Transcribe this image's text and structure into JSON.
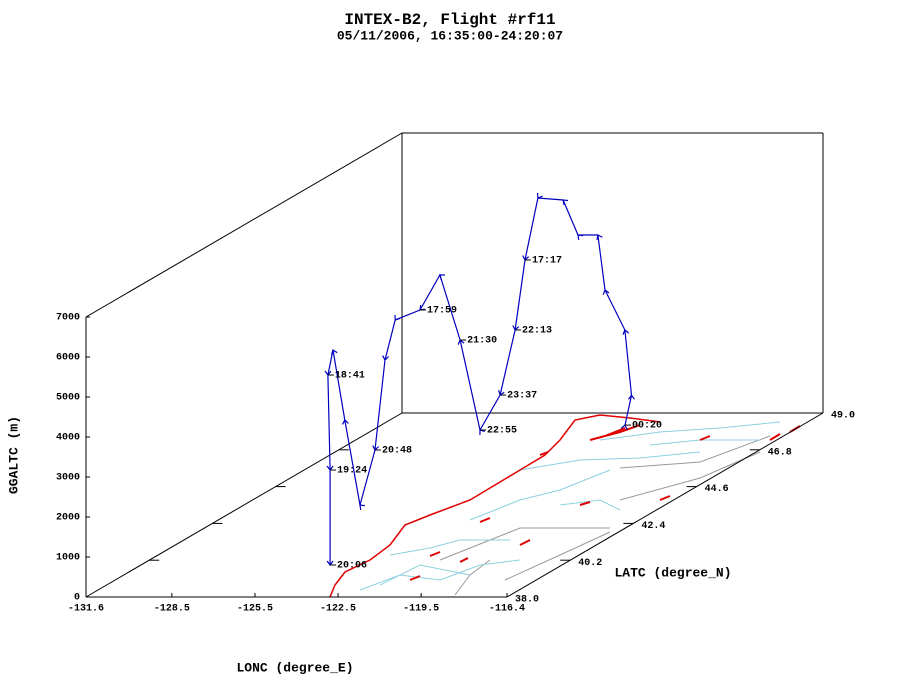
{
  "chart_data": {
    "type": "line3d",
    "title": "INTEX-B2, Flight #rf11",
    "subtitle": "05/11/2006, 16:35:00-24:20:07",
    "xlabel": "LONC (degree_E)",
    "ylabel": "LATC (degree_N)",
    "zlabel": "GGALTC (m)",
    "color": "#0000c0",
    "x": [
      -122.75,
      -122.38,
      -122.41,
      -122.9,
      -122.93,
      -123.42,
      -123.73,
      -124.41,
      -124.65,
      -124.78,
      -125.09,
      -125.59,
      -126.08,
      -126.58,
      -127.07,
      -127.74,
      -127.88,
      -126.87,
      -126.5,
      -126.59,
      -126.56,
      -126.29,
      -125.64,
      -124.5
    ],
    "y": [
      48.23,
      48.1,
      47.9,
      47.68,
      47.46,
      47.24,
      47.02,
      46.8,
      46.58,
      46.36,
      46.14,
      45.92,
      45.7,
      45.48,
      45.26,
      45.04,
      44.82,
      43.5,
      42.62,
      42.18,
      41.74,
      41.3,
      40.75,
      39.65
    ],
    "z": [
      20,
      818,
      2535,
      3628,
      5095,
      5185,
      6153,
      6295,
      4838,
      3180,
      1645,
      863,
      3205,
      4923,
      4140,
      3980,
      3073,
      1375,
      368,
      2678,
      4610,
      4170,
      2025,
      110
    ],
    "time_labels": [
      "00:20",
      null,
      null,
      null,
      null,
      null,
      null,
      null,
      "17:17",
      "22:13",
      "23:37",
      "22:55",
      "21:30",
      null,
      "17:59",
      null,
      null,
      "20:48",
      null,
      null,
      null,
      "18:41",
      "19:24",
      "20:06"
    ],
    "xlim": [
      -131.6,
      -116.4
    ],
    "ylim": [
      38,
      49
    ],
    "zlim": [
      0,
      7000
    ],
    "xticks": [
      -131.6,
      -128.5,
      -125.5,
      -122.5,
      -119.5,
      -116.4
    ],
    "yticks": [
      {
        "value": 38,
        "label": "38.0"
      },
      40.2,
      42.4,
      44.6,
      46.8,
      {
        "value": 49,
        "label": "49.0"
      }
    ],
    "zticks": [
      0,
      1000,
      2000,
      3000,
      4000,
      5000,
      6000,
      7000
    ]
  }
}
